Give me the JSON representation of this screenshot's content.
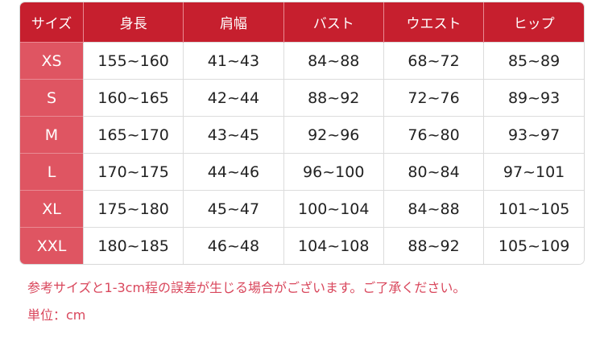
{
  "table": {
    "headers": [
      "サイズ",
      "身長",
      "肩幅",
      "バスト",
      "ウエスト",
      "ヒップ"
    ],
    "rows": [
      [
        "XS",
        "155~160",
        "41~43",
        "84~88",
        "68~72",
        "85~89"
      ],
      [
        "S",
        "160~165",
        "42~44",
        "88~92",
        "72~76",
        "89~93"
      ],
      [
        "M",
        "165~170",
        "43~45",
        "92~96",
        "76~80",
        "93~97"
      ],
      [
        "L",
        "170~175",
        "44~46",
        "96~100",
        "80~84",
        "97~101"
      ],
      [
        "XL",
        "175~180",
        "45~47",
        "100~104",
        "84~88",
        "101~105"
      ],
      [
        "XXL",
        "180~185",
        "46~48",
        "104~108",
        "88~92",
        "105~109"
      ]
    ]
  },
  "notes": {
    "disclaimer": "参考サイズと1-3cm程の誤差が生じる場合がございます。ご了承ください。",
    "unit": "単位：cm"
  },
  "colors": {
    "header": "#c61f2e",
    "size_column": "#df5562",
    "note_text": "#d9475c"
  }
}
